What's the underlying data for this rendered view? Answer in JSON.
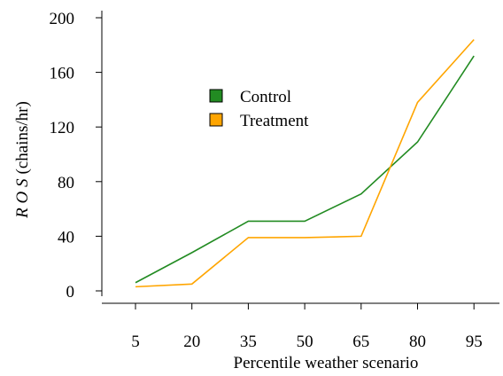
{
  "chart_data": {
    "type": "line",
    "categories": [
      "5",
      "20",
      "35",
      "50",
      "65",
      "80",
      "95"
    ],
    "x": [
      5,
      20,
      35,
      50,
      65,
      80,
      95
    ],
    "series": [
      {
        "name": "Control",
        "color": "#228b22",
        "values": [
          6,
          28,
          51,
          51,
          71,
          109,
          172
        ]
      },
      {
        "name": "Treatment",
        "color": "#ffa500",
        "values": [
          3,
          5,
          39,
          39,
          40,
          138,
          184
        ]
      }
    ],
    "title": "",
    "xlabel": "Percentile weather scenario",
    "ylabel_italic": "R O S",
    "ylabel_unit": "(chains/hr)",
    "ylim": [
      0,
      200
    ],
    "yticks": [
      0,
      40,
      80,
      120,
      160,
      200
    ],
    "grid": false,
    "legend_position": "upper-left-center"
  }
}
